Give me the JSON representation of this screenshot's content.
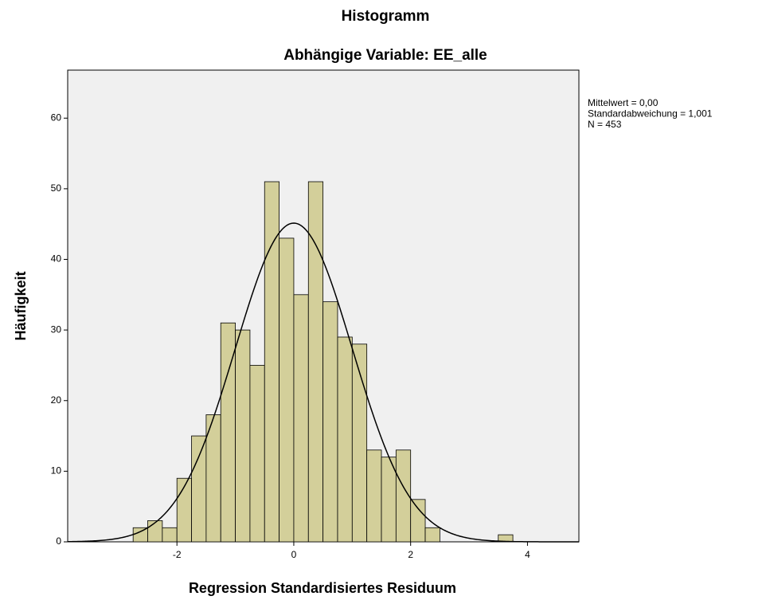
{
  "chart_data": {
    "type": "histogram",
    "title": "Histogramm",
    "subtitle": "Abhängige Variable: EE_alle",
    "x_label": "Regression Standardisiertes Residuum",
    "y_label": "Häufigkeit",
    "bins": [
      -2.75,
      -2.5,
      -2.25,
      -2,
      -1.75,
      -1.5,
      -1.25,
      -1,
      -0.75,
      -0.5,
      -0.25,
      0,
      0.25,
      0.5,
      0.75,
      1,
      1.25,
      1.5,
      1.75,
      2,
      2.25,
      2.5,
      2.75,
      3,
      3.25,
      3.5,
      3.75
    ],
    "counts": [
      2,
      3,
      2,
      9,
      15,
      18,
      31,
      30,
      25,
      51,
      43,
      35,
      51,
      34,
      29,
      28,
      13,
      12,
      13,
      6,
      2,
      0,
      0,
      0,
      0,
      1
    ],
    "color": "#d3cf9a",
    "curve_color": "#000000",
    "background": "#f0f0f0",
    "xlim": [
      -3.87,
      4.88
    ],
    "xticks": [
      -2,
      0,
      2,
      4
    ],
    "ylim": [
      0,
      66.8
    ],
    "yticks": [
      0,
      10,
      20,
      30,
      40,
      50,
      60
    ],
    "stats": [
      {
        "value": 0,
        "label": "Mittelwert = 0,00"
      },
      {
        "value": 1.001,
        "label": "Standardabweichung = 1,001"
      },
      {
        "value": 453,
        "label": "N = 453"
      }
    ]
  }
}
